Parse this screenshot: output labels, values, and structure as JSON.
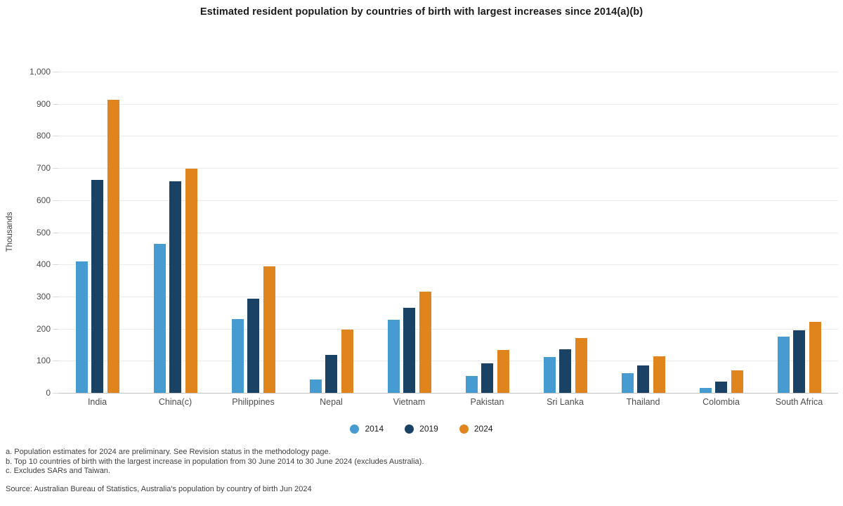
{
  "chart_data": {
    "type": "bar",
    "title": "Estimated resident population by countries of birth with largest increases since 2014(a)(b)",
    "ylabel": "Thousands",
    "ylim": [
      0,
      1000
    ],
    "grid": true,
    "legend_position": "bottom",
    "yticks": [
      {
        "value": 0,
        "label": "0"
      },
      {
        "value": 100,
        "label": "100"
      },
      {
        "value": 200,
        "label": "200"
      },
      {
        "value": 300,
        "label": "300"
      },
      {
        "value": 400,
        "label": "400"
      },
      {
        "value": 500,
        "label": "500"
      },
      {
        "value": 600,
        "label": "600"
      },
      {
        "value": 700,
        "label": "700"
      },
      {
        "value": 800,
        "label": "800"
      },
      {
        "value": 900,
        "label": "900"
      },
      {
        "value": 1000,
        "label": "1,000"
      }
    ],
    "categories": [
      "India",
      "China(c)",
      "Philippines",
      "Nepal",
      "Vietnam",
      "Pakistan",
      "Sri Lanka",
      "Thailand",
      "Colombia",
      "South Africa"
    ],
    "series": [
      {
        "name": "2014",
        "color": "#469BD0",
        "values": [
          410,
          464,
          230,
          42,
          228,
          53,
          112,
          61,
          15,
          175
        ]
      },
      {
        "name": "2019",
        "color": "#1A4264",
        "values": [
          664,
          659,
          293,
          118,
          265,
          91,
          136,
          85,
          34,
          194
        ]
      },
      {
        "name": "2024",
        "color": "#E0851E",
        "values": [
          913,
          697,
          393,
          196,
          316,
          134,
          170,
          114,
          69,
          222
        ]
      }
    ]
  },
  "footnotes": [
    "a. Population estimates for 2024 are preliminary. See Revision status in the methodology page.",
    "b. Top 10 countries of birth with the largest increase in population from 30 June 2014 to 30 June 2024 (excludes Australia).",
    "c. Excludes SARs and Taiwan."
  ],
  "source": "Source: Australian Bureau of Statistics, Australia's population by country of birth Jun 2024"
}
